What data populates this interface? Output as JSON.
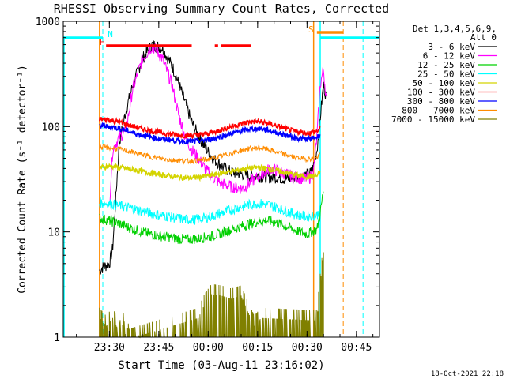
{
  "chart_data": {
    "type": "line",
    "title": "RHESSI Observing Summary Count Rates, Corrected",
    "xlabel": "Start Time (03-Aug-11 23:16:02)",
    "ylabel": "Corrected Count Rate (s⁻¹ detector⁻¹)",
    "y_scale": "log",
    "ylim": [
      1,
      1000
    ],
    "xlim_minutes_after_start": [
      0,
      96
    ],
    "y_ticks": [
      1,
      10,
      100,
      1000
    ],
    "y_tick_labels": [
      "1",
      "10",
      "100",
      "1000"
    ],
    "x_ticks_minutes": [
      14,
      29,
      44,
      59,
      74,
      89
    ],
    "x_tick_labels": [
      "23:30",
      "23:45",
      "00:00",
      "00:15",
      "00:30",
      "00:45"
    ],
    "legend": {
      "placement": "right",
      "header": [
        "Det 1,3,4,5,6,9,",
        "Att 0"
      ]
    },
    "footer_timestamp": "18-Oct-2021 22:18",
    "series": [
      {
        "name": "3 - 6 keV",
        "color": "#000000",
        "x": [
          11,
          12,
          14,
          15,
          17,
          19,
          21,
          24,
          27,
          30,
          33,
          35,
          37,
          39,
          41,
          43,
          45,
          47,
          49,
          51,
          53,
          55,
          57,
          59,
          61,
          63,
          65,
          67,
          69,
          71,
          73,
          75,
          76,
          77,
          78,
          79,
          80
        ],
        "y": [
          4.3,
          4.6,
          5,
          7,
          70,
          140,
          240,
          440,
          600,
          560,
          380,
          260,
          170,
          110,
          82,
          64,
          52,
          45,
          40,
          37,
          36,
          35,
          34,
          34,
          33,
          33,
          33,
          32,
          32,
          33,
          34,
          36,
          42,
          60,
          120,
          250,
          180
        ]
      },
      {
        "name": "6 - 12 keV",
        "color": "#ff00ff",
        "x": [
          14,
          15,
          17,
          19,
          21,
          24,
          27,
          30,
          33,
          35,
          37,
          39,
          41,
          43,
          45,
          47,
          49,
          51,
          53,
          55,
          57,
          59,
          61,
          63,
          65,
          67,
          69,
          71,
          73,
          75,
          76,
          77,
          78,
          79,
          80
        ],
        "y": [
          18,
          60,
          80,
          90,
          220,
          440,
          580,
          450,
          250,
          130,
          80,
          60,
          50,
          40,
          34,
          30,
          28,
          27,
          26,
          26,
          30,
          33,
          37,
          40,
          38,
          36,
          34,
          33,
          32,
          33,
          38,
          80,
          250,
          350,
          160
        ]
      },
      {
        "name": "12 - 25 keV",
        "color": "#00d000",
        "x": [
          11,
          14,
          17,
          20,
          23,
          26,
          29,
          32,
          35,
          38,
          41,
          44,
          47,
          50,
          53,
          56,
          59,
          62,
          65,
          68,
          71,
          74,
          77,
          78,
          79
        ],
        "y": [
          13.5,
          12.8,
          12,
          11,
          10.2,
          9.6,
          9.2,
          8.9,
          8.6,
          8.5,
          8.6,
          9,
          9.5,
          10.2,
          11,
          11.8,
          12.5,
          12.8,
          12.2,
          11.2,
          10.2,
          9.6,
          10.5,
          15,
          25
        ]
      },
      {
        "name": "25 - 50 keV",
        "color": "#00ffff",
        "x": [
          11,
          14,
          17,
          20,
          23,
          26,
          29,
          32,
          35,
          38,
          41,
          44,
          47,
          50,
          53,
          56,
          59,
          62,
          65,
          68,
          71,
          74,
          77,
          78
        ],
        "y": [
          19,
          18.5,
          17.8,
          17,
          16,
          15.2,
          14.5,
          14,
          13.4,
          13,
          13.2,
          13.8,
          14.8,
          15.8,
          17,
          18,
          18.6,
          18.2,
          17,
          15.6,
          14.5,
          14,
          14.5,
          16
        ]
      },
      {
        "name": "50 - 100 keV",
        "color": "#d4d400",
        "x": [
          11,
          14,
          17,
          20,
          23,
          26,
          29,
          32,
          35,
          38,
          41,
          44,
          47,
          50,
          53,
          56,
          59,
          62,
          65,
          68,
          71,
          74,
          77,
          78
        ],
        "y": [
          41,
          42,
          41,
          39.5,
          38,
          36.5,
          35,
          34,
          33,
          32.5,
          33,
          34,
          35.5,
          37,
          38.5,
          40,
          41,
          40,
          38,
          36,
          34.5,
          33.5,
          34,
          37
        ]
      },
      {
        "name": "100 - 300 keV",
        "color": "#ff0000",
        "x": [
          11,
          14,
          17,
          20,
          23,
          26,
          29,
          32,
          35,
          38,
          41,
          44,
          47,
          50,
          53,
          56,
          59,
          62,
          65,
          68,
          71,
          74,
          77,
          78
        ],
        "y": [
          118,
          116,
          110,
          103,
          97,
          92,
          88,
          85,
          83,
          82,
          83,
          86,
          91,
          98,
          104,
          110,
          112,
          108,
          101,
          94,
          89,
          87,
          90,
          96
        ]
      },
      {
        "name": "300 - 800 keV",
        "color": "#0000ff",
        "x": [
          11,
          14,
          17,
          20,
          23,
          26,
          29,
          32,
          35,
          38,
          41,
          44,
          47,
          50,
          53,
          56,
          59,
          62,
          65,
          68,
          71,
          74,
          77,
          78
        ],
        "y": [
          102,
          100,
          96,
          90,
          84,
          80,
          77,
          75,
          73,
          72,
          73,
          75,
          79,
          84,
          89,
          94,
          96,
          93,
          87,
          82,
          78,
          76,
          79,
          84
        ]
      },
      {
        "name": "800 - 7000 keV",
        "color": "#ff8c00",
        "x": [
          11,
          14,
          17,
          20,
          23,
          26,
          29,
          32,
          35,
          38,
          41,
          44,
          47,
          50,
          53,
          56,
          59,
          62,
          65,
          68,
          71,
          74,
          77,
          78
        ],
        "y": [
          64,
          63,
          61,
          58,
          55,
          52,
          50,
          48.5,
          47.5,
          47,
          47.5,
          49,
          51.5,
          54.5,
          58,
          61.5,
          63,
          61,
          57,
          53.5,
          50.5,
          49,
          50.5,
          54
        ]
      },
      {
        "name": "7000 - 15000 keV",
        "color": "#808000",
        "x": [
          11,
          13,
          15,
          17,
          19,
          20,
          41,
          43,
          45,
          48,
          51,
          54,
          56,
          58,
          60,
          77,
          78,
          79
        ],
        "y": [
          1.9,
          1.6,
          1.9,
          1.4,
          1.9,
          1.2,
          1.9,
          2.6,
          3.2,
          3.1,
          2.9,
          3.1,
          2.2,
          1.6,
          1.9,
          1.8,
          4,
          8
        ]
      }
    ],
    "flags": [
      {
        "label": "F",
        "color": "#ff0000",
        "intervals_minutes": [
          [
            13,
            39
          ],
          [
            46,
            47
          ],
          [
            48,
            57
          ]
        ]
      },
      {
        "label": "N",
        "color": "#00ffff",
        "intervals_minutes": [
          [
            0,
            12
          ],
          [
            78,
            96
          ]
        ]
      },
      {
        "label": "S",
        "color": "#ff8c00",
        "intervals_minutes": [
          [
            77,
            85
          ]
        ]
      }
    ],
    "markers": [
      {
        "name": "night start",
        "kind": "cyan-solid",
        "x_minutes": 78
      },
      {
        "name": "saa end",
        "kind": "orange-dashed",
        "x_minutes": 85
      },
      {
        "name": "night end",
        "kind": "cyan-dashed",
        "x_minutes": 91
      },
      {
        "name": "night start (before)",
        "kind": "cyan-dashed",
        "x_minutes": 12
      },
      {
        "name": "saa mark",
        "kind": "orange-solid",
        "x_minutes": 76
      },
      {
        "name": "data start",
        "kind": "orange-solid",
        "x_minutes": 11
      }
    ]
  }
}
